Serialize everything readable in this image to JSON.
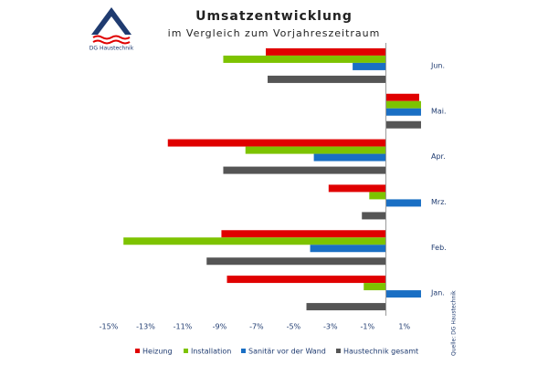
{
  "logo_text": "DG Haustechnik",
  "source": "Quelle: DG Haustechnik",
  "chart_data": {
    "type": "hbar",
    "title": "Umsatzentwicklung",
    "subtitle": "im Vergleich zum Vorjahreszeitraum",
    "categories": [
      "Jun.",
      "Mai.",
      "Apr.",
      "Mrz.",
      "Feb.",
      "Jan."
    ],
    "series": [
      {
        "name": "Heizung",
        "color": "#e00000",
        "values": [
          -6.5,
          1.8,
          -11.8,
          -3.1,
          -8.9,
          -8.6
        ]
      },
      {
        "name": "Installation",
        "color": "#7dc300",
        "values": [
          -8.8,
          1.9,
          -7.6,
          -0.9,
          -14.2,
          -1.2
        ]
      },
      {
        "name": "Sanitär vor der Wand",
        "color": "#1a6fc4",
        "values": [
          -1.8,
          1.9,
          -3.9,
          1.9,
          -4.1,
          1.9
        ]
      },
      {
        "name": "Haustechnik gesamt",
        "color": "#555555",
        "values": [
          -6.4,
          1.9,
          -8.8,
          -1.3,
          -9.7,
          -4.3
        ]
      }
    ],
    "xlim": [
      -15,
      2
    ],
    "xticks": [
      {
        "value": -15,
        "label": "-15%"
      },
      {
        "value": -13,
        "label": "-13%"
      },
      {
        "value": -11,
        "label": "-11%"
      },
      {
        "value": -9,
        "label": "-9%"
      },
      {
        "value": -7,
        "label": "-7%"
      },
      {
        "value": -5,
        "label": "-5%"
      },
      {
        "value": -3,
        "label": "-3%"
      },
      {
        "value": -1,
        "label": "-1%"
      },
      {
        "value": 1,
        "label": "1%"
      }
    ],
    "legend": "bottom"
  }
}
